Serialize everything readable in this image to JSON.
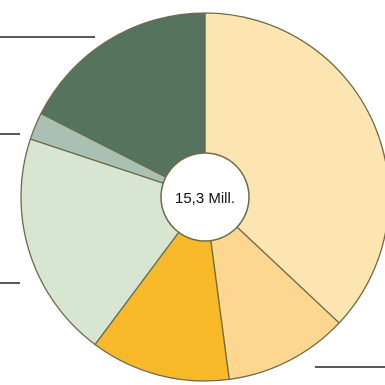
{
  "chart_data": {
    "type": "pie",
    "style": "donut",
    "center_label": "15,3 Mill.",
    "start": "top",
    "direction": "clockwise",
    "slice_border": "#6b6b4a",
    "slices": [
      {
        "value": 37.0,
        "color": "#fde5b1"
      },
      {
        "value": 10.9,
        "color": "#fdd78f"
      },
      {
        "value": 12.3,
        "color": "#f7b92a"
      },
      {
        "value": 19.9,
        "color": "#d8e6d1"
      },
      {
        "value": 2.4,
        "color": "#a9c0b4"
      },
      {
        "value": 17.5,
        "color": "#55735f"
      }
    ]
  }
}
